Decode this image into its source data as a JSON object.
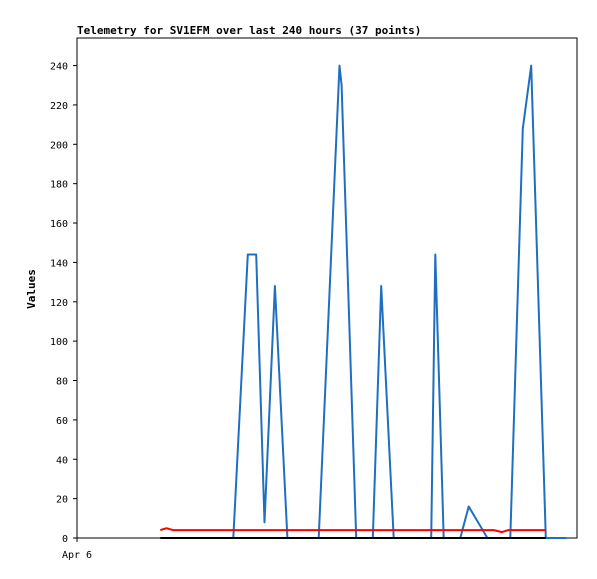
{
  "chart_data": {
    "type": "line",
    "title": "Telemetry for SV1EFM over last 240 hours (37 points)",
    "xlabel": "",
    "ylabel": "Values",
    "x_tick_labels": [
      "Apr 6"
    ],
    "xlim": [
      0,
      240
    ],
    "ylim": [
      0,
      254
    ],
    "y_ticks": [
      0,
      20,
      40,
      60,
      80,
      100,
      120,
      140,
      160,
      180,
      200,
      220,
      240
    ],
    "grid": false,
    "legend": "none",
    "series": [
      {
        "color": "#1f6fc0",
        "points": [
          [
            55,
            0
          ],
          [
            65,
            0
          ],
          [
            75,
            0
          ],
          [
            82,
            144
          ],
          [
            86,
            144
          ],
          [
            90,
            8
          ],
          [
            95,
            128
          ],
          [
            101,
            0
          ],
          [
            116,
            0
          ],
          [
            126,
            240
          ],
          [
            127,
            230
          ],
          [
            134,
            0
          ],
          [
            142,
            0
          ],
          [
            146,
            128
          ],
          [
            152,
            0
          ],
          [
            160,
            0
          ],
          [
            170,
            0
          ],
          [
            172,
            144
          ],
          [
            176,
            0
          ],
          [
            184,
            0
          ],
          [
            188,
            16
          ],
          [
            197,
            0
          ],
          [
            201,
            0
          ],
          [
            208,
            0
          ],
          [
            214,
            208
          ],
          [
            218,
            240
          ],
          [
            225,
            0
          ],
          [
            235,
            0
          ]
        ]
      },
      {
        "color": "#ff0000",
        "points": [
          [
            40,
            4
          ],
          [
            43,
            5
          ],
          [
            46,
            4
          ],
          [
            60,
            4
          ],
          [
            80,
            4
          ],
          [
            100,
            4
          ],
          [
            120,
            4
          ],
          [
            140,
            4
          ],
          [
            160,
            4
          ],
          [
            180,
            4
          ],
          [
            200,
            4
          ],
          [
            204,
            3
          ],
          [
            207,
            4
          ],
          [
            215,
            4
          ],
          [
            225,
            4
          ]
        ]
      },
      {
        "color": "#000000",
        "points": [
          [
            40,
            0
          ],
          [
            225,
            0
          ]
        ]
      }
    ]
  }
}
